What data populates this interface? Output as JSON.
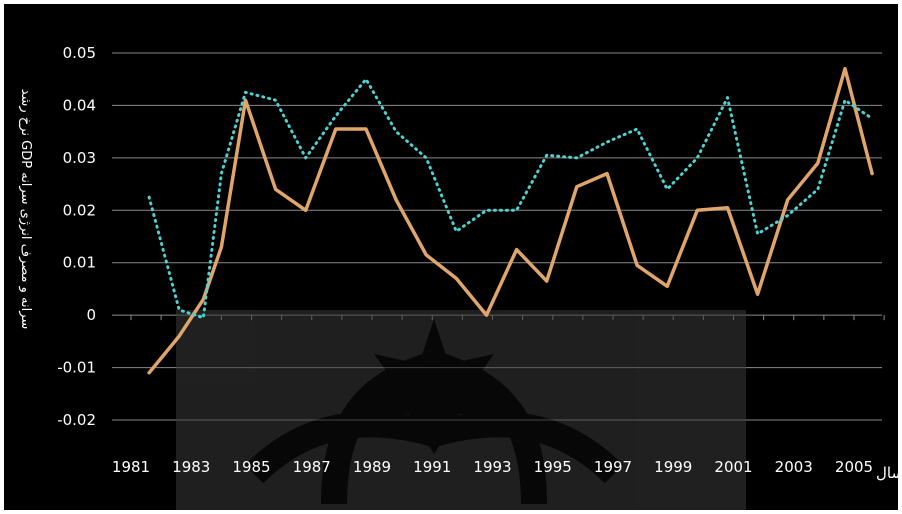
{
  "chart_data": {
    "type": "line",
    "xlabel": "سال",
    "ylabel": "نرخ رشد GDP سرانه و مصرف انرژی سرانه",
    "ylim": [
      -0.02,
      0.05
    ],
    "y_ticks": [
      "0.05",
      "0.04",
      "0.03",
      "0.02",
      "0.01",
      "0",
      "-0.01",
      "-0.02"
    ],
    "x_ticks": [
      "1981",
      "1983",
      "1985",
      "1987",
      "1989",
      "1991",
      "1993",
      "1995",
      "1997",
      "1999",
      "2001",
      "2003",
      "2005"
    ],
    "grid": true,
    "x": [
      1981.6,
      1982.6,
      1983.4,
      1984,
      1984.8,
      1985.8,
      1986.8,
      1987.8,
      1988.8,
      1989.8,
      1990.8,
      1991.8,
      1992.8,
      1993.8,
      1994.8,
      1995.8,
      1996.8,
      1997.8,
      1998.8,
      1999.8,
      2000.8,
      2001.8,
      2002.8,
      2003.8,
      2004.7,
      2005.6
    ],
    "series": [
      {
        "name": "",
        "color": "#e0a56a",
        "style": "solid",
        "values": [
          -0.011,
          -0.004,
          0.003,
          0.013,
          0.041,
          0.024,
          0.02,
          0.0355,
          0.0355,
          0.022,
          0.0115,
          0.007,
          0.0,
          0.0125,
          0.0065,
          0.0245,
          0.027,
          0.0095,
          0.0055,
          0.02,
          0.0205,
          0.004,
          0.022,
          0.029,
          0.047,
          0.027
        ]
      },
      {
        "name": "",
        "color": "#4dd2d2",
        "style": "dotted",
        "values": [
          0.0225,
          0.001,
          -0.0005,
          0.027,
          0.0425,
          0.041,
          0.03,
          0.038,
          0.045,
          0.035,
          0.03,
          0.016,
          0.02,
          0.02,
          0.0305,
          0.03,
          0.033,
          0.0355,
          0.024,
          0.03,
          0.0415,
          0.0155,
          0.019,
          0.024,
          0.041,
          0.0375
        ]
      }
    ]
  }
}
